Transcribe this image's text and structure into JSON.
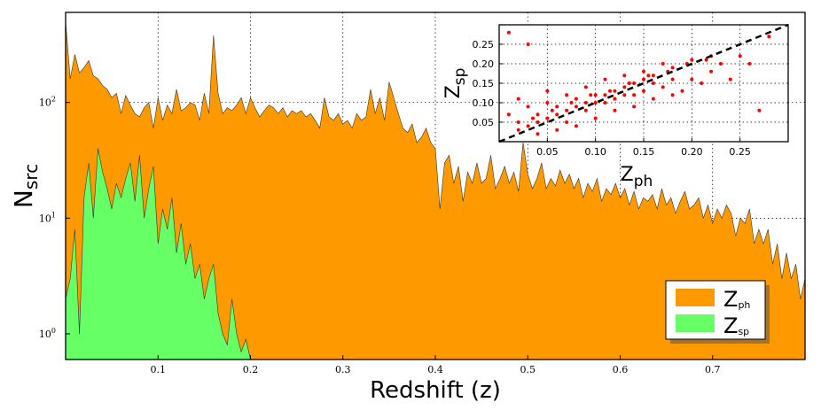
{
  "chart_data": [
    {
      "type": "area",
      "xlabel": "Redshift (z)",
      "ylabel": "N",
      "ylabel_sub": "src",
      "yscale": "log",
      "xlim": [
        0.0,
        0.8
      ],
      "ylim": [
        0.6,
        600
      ],
      "x_ticks": [
        "0.1",
        "0.2",
        "0.3",
        "0.4",
        "0.5",
        "0.6",
        "0.7"
      ],
      "y_ticks": [
        {
          "base": "10",
          "exp": "0"
        },
        {
          "base": "10",
          "exp": "1"
        },
        {
          "base": "10",
          "exp": "2"
        }
      ],
      "grid": true,
      "legend_position": "bottom-right",
      "series": [
        {
          "name": "Z",
          "name_sub": "ph",
          "color": "#ff9900",
          "x": [
            0.0,
            0.005,
            0.01,
            0.015,
            0.02,
            0.025,
            0.03,
            0.035,
            0.04,
            0.045,
            0.05,
            0.055,
            0.06,
            0.065,
            0.07,
            0.075,
            0.08,
            0.085,
            0.09,
            0.095,
            0.1,
            0.105,
            0.11,
            0.115,
            0.12,
            0.125,
            0.13,
            0.135,
            0.14,
            0.145,
            0.15,
            0.155,
            0.16,
            0.165,
            0.17,
            0.175,
            0.18,
            0.185,
            0.19,
            0.195,
            0.2,
            0.205,
            0.21,
            0.215,
            0.22,
            0.225,
            0.23,
            0.235,
            0.24,
            0.245,
            0.25,
            0.255,
            0.26,
            0.265,
            0.27,
            0.275,
            0.28,
            0.285,
            0.29,
            0.295,
            0.3,
            0.305,
            0.31,
            0.315,
            0.32,
            0.325,
            0.33,
            0.335,
            0.34,
            0.345,
            0.35,
            0.355,
            0.36,
            0.365,
            0.37,
            0.375,
            0.38,
            0.385,
            0.39,
            0.395,
            0.4,
            0.405,
            0.41,
            0.415,
            0.42,
            0.425,
            0.43,
            0.435,
            0.44,
            0.445,
            0.45,
            0.455,
            0.46,
            0.465,
            0.47,
            0.475,
            0.48,
            0.485,
            0.49,
            0.495,
            0.5,
            0.505,
            0.51,
            0.515,
            0.52,
            0.525,
            0.53,
            0.535,
            0.54,
            0.545,
            0.55,
            0.555,
            0.56,
            0.565,
            0.57,
            0.575,
            0.58,
            0.585,
            0.59,
            0.595,
            0.6,
            0.605,
            0.61,
            0.615,
            0.62,
            0.625,
            0.63,
            0.635,
            0.64,
            0.645,
            0.65,
            0.655,
            0.66,
            0.665,
            0.67,
            0.675,
            0.68,
            0.685,
            0.69,
            0.695,
            0.7,
            0.705,
            0.71,
            0.715,
            0.72,
            0.725,
            0.73,
            0.735,
            0.74,
            0.745,
            0.75,
            0.755,
            0.76,
            0.765,
            0.77,
            0.775,
            0.78,
            0.785,
            0.79,
            0.795,
            0.8
          ],
          "values": [
            500,
            160,
            260,
            180,
            200,
            230,
            170,
            160,
            140,
            130,
            110,
            120,
            80,
            115,
            95,
            80,
            75,
            90,
            100,
            60,
            110,
            70,
            95,
            80,
            130,
            85,
            90,
            100,
            95,
            70,
            120,
            80,
            380,
            120,
            80,
            90,
            85,
            95,
            110,
            80,
            110,
            90,
            75,
            85,
            95,
            90,
            80,
            90,
            75,
            85,
            80,
            85,
            75,
            80,
            70,
            60,
            110,
            75,
            70,
            80,
            65,
            70,
            60,
            80,
            70,
            75,
            130,
            80,
            110,
            70,
            150,
            110,
            80,
            60,
            55,
            65,
            45,
            50,
            60,
            45,
            40,
            12,
            30,
            35,
            20,
            28,
            14,
            25,
            20,
            30,
            20,
            22,
            35,
            18,
            22,
            28,
            20,
            25,
            17,
            45,
            24,
            18,
            22,
            30,
            18,
            22,
            19,
            26,
            20,
            24,
            18,
            22,
            15,
            20,
            17,
            22,
            14,
            18,
            16,
            20,
            15,
            18,
            13,
            17,
            12,
            15,
            14,
            16,
            12,
            18,
            13,
            15,
            11,
            14,
            17,
            12,
            13,
            15,
            10,
            13,
            9,
            12,
            10,
            13,
            11,
            7,
            10,
            9,
            12,
            6,
            8,
            6,
            8,
            4,
            6,
            3,
            5,
            3,
            4,
            2,
            3
          ]
        },
        {
          "name": "Z",
          "name_sub": "sp",
          "color": "#66ff66",
          "x": [
            0.0,
            0.005,
            0.01,
            0.015,
            0.02,
            0.025,
            0.03,
            0.035,
            0.04,
            0.045,
            0.05,
            0.055,
            0.06,
            0.065,
            0.07,
            0.075,
            0.08,
            0.085,
            0.09,
            0.095,
            0.1,
            0.105,
            0.11,
            0.115,
            0.12,
            0.125,
            0.13,
            0.135,
            0.14,
            0.145,
            0.15,
            0.155,
            0.16,
            0.165,
            0.17,
            0.175,
            0.18,
            0.185,
            0.19,
            0.195,
            0.2
          ],
          "values": [
            2,
            3,
            8,
            1,
            15,
            30,
            10,
            40,
            25,
            18,
            12,
            20,
            15,
            22,
            30,
            14,
            35,
            10,
            18,
            28,
            6,
            12,
            8,
            15,
            5,
            9,
            4,
            6,
            3,
            4,
            2,
            3,
            4,
            1.5,
            1,
            0.8,
            2,
            1,
            0.7,
            0.9,
            0.6
          ]
        }
      ]
    },
    {
      "type": "scatter",
      "xlabel": "Z",
      "xlabel_sub": "ph",
      "ylabel": "Z",
      "ylabel_sub": "sp",
      "xlim": [
        0.0,
        0.3
      ],
      "ylim": [
        0.0,
        0.3
      ],
      "x_ticks": [
        "0.05",
        "0.10",
        "0.15",
        "0.20",
        "0.25"
      ],
      "y_ticks": [
        "0.05",
        "0.10",
        "0.15",
        "0.20",
        "0.25"
      ],
      "grid": true,
      "point_color": "#ff0000",
      "reference_line": "dashed 1:1",
      "points": [
        [
          0.02,
          0.03
        ],
        [
          0.03,
          0.04
        ],
        [
          0.04,
          0.05
        ],
        [
          0.05,
          0.06
        ],
        [
          0.06,
          0.07
        ],
        [
          0.07,
          0.08
        ],
        [
          0.08,
          0.09
        ],
        [
          0.09,
          0.1
        ],
        [
          0.1,
          0.1
        ],
        [
          0.11,
          0.12
        ],
        [
          0.12,
          0.13
        ],
        [
          0.13,
          0.14
        ],
        [
          0.14,
          0.15
        ],
        [
          0.15,
          0.16
        ],
        [
          0.16,
          0.17
        ],
        [
          0.18,
          0.19
        ],
        [
          0.2,
          0.21
        ],
        [
          0.22,
          0.22
        ],
        [
          0.01,
          0.07
        ],
        [
          0.02,
          0.11
        ],
        [
          0.03,
          0.09
        ],
        [
          0.04,
          0.02
        ],
        [
          0.05,
          0.13
        ],
        [
          0.06,
          0.03
        ],
        [
          0.07,
          0.12
        ],
        [
          0.08,
          0.04
        ],
        [
          0.09,
          0.14
        ],
        [
          0.1,
          0.06
        ],
        [
          0.11,
          0.16
        ],
        [
          0.12,
          0.08
        ],
        [
          0.13,
          0.17
        ],
        [
          0.14,
          0.09
        ],
        [
          0.15,
          0.18
        ],
        [
          0.16,
          0.11
        ],
        [
          0.17,
          0.2
        ],
        [
          0.18,
          0.12
        ],
        [
          0.19,
          0.13
        ],
        [
          0.2,
          0.16
        ],
        [
          0.21,
          0.15
        ],
        [
          0.22,
          0.18
        ],
        [
          0.23,
          0.2
        ],
        [
          0.25,
          0.22
        ],
        [
          0.28,
          0.27
        ],
        [
          0.27,
          0.08
        ],
        [
          0.26,
          0.2
        ],
        [
          0.24,
          0.16
        ],
        [
          0.01,
          0.28
        ],
        [
          0.03,
          0.25
        ],
        [
          0.05,
          0.1
        ],
        [
          0.07,
          0.05
        ],
        [
          0.09,
          0.08
        ],
        [
          0.11,
          0.1
        ],
        [
          0.13,
          0.12
        ],
        [
          0.15,
          0.13
        ],
        [
          0.17,
          0.14
        ],
        [
          0.02,
          0.05
        ],
        [
          0.04,
          0.07
        ],
        [
          0.06,
          0.09
        ],
        [
          0.08,
          0.11
        ],
        [
          0.1,
          0.12
        ],
        [
          0.12,
          0.11
        ],
        [
          0.14,
          0.12
        ],
        [
          0.16,
          0.15
        ],
        [
          0.18,
          0.16
        ],
        [
          0.035,
          0.06
        ],
        [
          0.055,
          0.08
        ],
        [
          0.075,
          0.1
        ],
        [
          0.095,
          0.12
        ],
        [
          0.115,
          0.13
        ],
        [
          0.135,
          0.15
        ],
        [
          0.155,
          0.17
        ],
        [
          0.175,
          0.18
        ],
        [
          0.195,
          0.2
        ],
        [
          0.215,
          0.21
        ]
      ]
    }
  ]
}
